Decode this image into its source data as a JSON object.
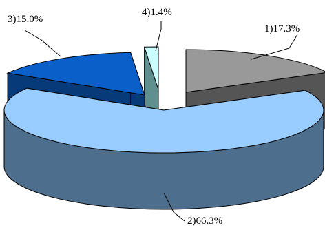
{
  "chart_data": {
    "type": "pie",
    "style": "3d-exploded",
    "title": "",
    "slices": [
      {
        "label": "1)17.3%",
        "category": "1",
        "value": 17.3,
        "color_top": "#999999",
        "color_side": "#555555"
      },
      {
        "label": "2)66.3%",
        "category": "2",
        "value": 66.3,
        "color_top": "#99ccff",
        "color_side": "#4d6f8d"
      },
      {
        "label": "3)15.0%",
        "category": "3",
        "value": 15.0,
        "color_top": "#0a5fc8",
        "color_side": "#073a78"
      },
      {
        "label": "4)1.4%",
        "category": "4",
        "value": 1.4,
        "color_top": "#ccffff",
        "color_side": "#5f8f8f"
      }
    ],
    "legend": "none",
    "leader_lines": true
  }
}
